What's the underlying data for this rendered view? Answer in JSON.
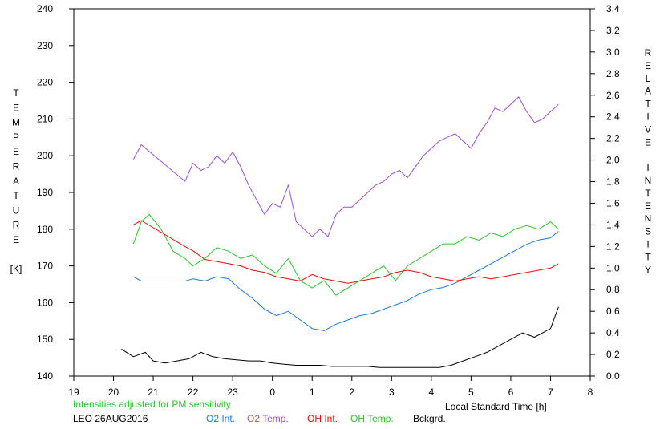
{
  "chart_data": {
    "type": "line",
    "xlabel": "Local Standard Time [h]",
    "ylabel_left_letters": [
      "T",
      "E",
      "M",
      "P",
      "E",
      "R",
      "A",
      "T",
      "U",
      "R",
      "E",
      "",
      "[K]"
    ],
    "ylabel_right_letters": [
      "R",
      "E",
      "L",
      "A",
      "T",
      "I",
      "V",
      "E",
      "",
      "I",
      "N",
      "T",
      "E",
      "N",
      "S",
      "I",
      "T",
      "Y"
    ],
    "x_ticks": [
      "19",
      "20",
      "21",
      "22",
      "23",
      "0",
      "1",
      "2",
      "3",
      "4",
      "5",
      "6",
      "7",
      "8"
    ],
    "xlim": [
      19,
      32
    ],
    "y_left_ticks": [
      140,
      150,
      160,
      170,
      180,
      190,
      200,
      210,
      220,
      230,
      240
    ],
    "ylim_left": [
      140,
      240
    ],
    "y_right_ticks": [
      "0.0",
      "0.2",
      "0.4",
      "0.6",
      "0.8",
      "1.0",
      "1.2",
      "1.4",
      "1.6",
      "1.8",
      "2.0",
      "2.2",
      "2.4",
      "2.6",
      "2.8",
      "3.0",
      "3.2",
      "3.4"
    ],
    "ylim_right": [
      0,
      3.4
    ],
    "note": "Intensities adjusted for PM sensitivity",
    "station": "LEO 26AUG2016",
    "legend": [
      {
        "name": "O2 Int.",
        "color": "#1f78d8"
      },
      {
        "name": "O2 Temp.",
        "color": "#9b4fd1"
      },
      {
        "name": "OH Int.",
        "color": "#e01010"
      },
      {
        "name": "OH Temp.",
        "color": "#2ec02e"
      },
      {
        "name": "Bckgrd.",
        "color": "#000000"
      }
    ],
    "series": [
      {
        "name": "O2 Temp.",
        "axis": "left",
        "color": "#9b4fd1",
        "x": [
          20.5,
          20.7,
          21.8,
          22.0,
          22.2,
          22.4,
          22.6,
          22.8,
          23.0,
          23.2,
          23.4,
          23.6,
          23.8,
          24.0,
          24.2,
          24.4,
          24.6,
          24.8,
          25.0,
          25.2,
          25.4,
          25.6,
          25.8,
          26.0,
          26.2,
          26.4,
          26.6,
          26.8,
          27.0,
          27.2,
          27.4,
          27.6,
          27.8,
          28.0,
          28.2,
          28.4,
          28.6,
          28.8,
          29.0,
          29.2,
          29.4,
          29.6,
          29.8,
          30.0,
          30.2,
          30.4,
          30.6,
          30.8,
          31.0,
          31.2
        ],
        "y": [
          199,
          203,
          193,
          198,
          196,
          197,
          200,
          198,
          201,
          197,
          192,
          188,
          184,
          187,
          186,
          192,
          182,
          180,
          178,
          180,
          178,
          184,
          186,
          186,
          188,
          190,
          192,
          193,
          195,
          196,
          194,
          197,
          200,
          202,
          204,
          205,
          206,
          204,
          202,
          206,
          209,
          213,
          212,
          214,
          216,
          212,
          209,
          210,
          212,
          214
        ]
      },
      {
        "name": "OH Temp.",
        "axis": "left",
        "color": "#2ec02e",
        "x": [
          20.5,
          20.7,
          20.9,
          21.2,
          21.5,
          21.8,
          22.0,
          22.3,
          22.6,
          22.9,
          23.2,
          23.5,
          23.8,
          24.1,
          24.4,
          24.7,
          25.0,
          25.3,
          25.6,
          25.9,
          26.2,
          26.5,
          26.8,
          27.1,
          27.4,
          27.7,
          28.0,
          28.3,
          28.6,
          28.9,
          29.2,
          29.5,
          29.8,
          30.1,
          30.4,
          30.7,
          31.0,
          31.2
        ],
        "y": [
          176,
          182,
          184,
          180,
          174,
          172,
          170,
          172,
          175,
          174,
          172,
          173,
          170,
          168,
          172,
          166,
          164,
          166,
          162,
          164,
          166,
          168,
          170,
          166,
          170,
          172,
          174,
          176,
          176,
          178,
          177,
          179,
          178,
          180,
          181,
          180,
          182,
          180
        ]
      },
      {
        "name": "O2 Int.",
        "axis": "right",
        "color": "#1f78d8",
        "x": [
          20.5,
          20.7,
          21.8,
          22.0,
          22.3,
          22.6,
          22.9,
          23.2,
          23.5,
          23.8,
          24.1,
          24.4,
          24.7,
          25.0,
          25.3,
          25.6,
          25.9,
          26.2,
          26.5,
          26.8,
          27.1,
          27.4,
          27.7,
          28.0,
          28.3,
          28.6,
          28.9,
          29.2,
          29.5,
          29.8,
          30.1,
          30.4,
          30.7,
          31.0,
          31.2
        ],
        "y": [
          0.92,
          0.88,
          0.88,
          0.9,
          0.88,
          0.92,
          0.9,
          0.8,
          0.72,
          0.62,
          0.56,
          0.6,
          0.52,
          0.44,
          0.42,
          0.48,
          0.52,
          0.56,
          0.58,
          0.62,
          0.66,
          0.7,
          0.76,
          0.8,
          0.82,
          0.86,
          0.92,
          0.98,
          1.04,
          1.1,
          1.16,
          1.22,
          1.26,
          1.28,
          1.34
        ]
      },
      {
        "name": "OH Int.",
        "axis": "right",
        "color": "#e01010",
        "x": [
          20.5,
          20.7,
          21.8,
          22.0,
          22.3,
          22.6,
          22.9,
          23.2,
          23.5,
          23.8,
          24.1,
          24.4,
          24.7,
          25.0,
          25.3,
          25.6,
          25.9,
          26.2,
          26.5,
          26.8,
          27.1,
          27.4,
          27.7,
          28.0,
          28.3,
          28.6,
          28.9,
          29.2,
          29.5,
          29.8,
          30.1,
          30.4,
          30.7,
          31.0,
          31.2
        ],
        "y": [
          1.4,
          1.44,
          1.2,
          1.16,
          1.08,
          1.06,
          1.04,
          1.02,
          0.98,
          0.96,
          0.92,
          0.9,
          0.88,
          0.94,
          0.9,
          0.88,
          0.86,
          0.88,
          0.9,
          0.92,
          0.96,
          0.98,
          0.96,
          0.92,
          0.9,
          0.88,
          0.9,
          0.92,
          0.9,
          0.92,
          0.94,
          0.96,
          0.98,
          1.0,
          1.04
        ]
      },
      {
        "name": "Bckgrd.",
        "axis": "right",
        "color": "#000000",
        "x": [
          20.2,
          20.5,
          20.8,
          21.0,
          21.3,
          21.6,
          21.9,
          22.2,
          22.5,
          22.8,
          23.1,
          23.4,
          23.7,
          24.0,
          24.3,
          24.6,
          24.9,
          25.2,
          25.5,
          25.8,
          26.1,
          26.4,
          26.7,
          27.0,
          27.3,
          27.6,
          27.9,
          28.2,
          28.5,
          28.8,
          29.1,
          29.4,
          29.7,
          30.0,
          30.3,
          30.6,
          30.8,
          31.0,
          31.2
        ],
        "y": [
          0.25,
          0.18,
          0.22,
          0.14,
          0.12,
          0.14,
          0.16,
          0.22,
          0.18,
          0.16,
          0.15,
          0.14,
          0.14,
          0.12,
          0.11,
          0.1,
          0.1,
          0.1,
          0.09,
          0.09,
          0.09,
          0.09,
          0.08,
          0.08,
          0.08,
          0.08,
          0.08,
          0.08,
          0.1,
          0.14,
          0.18,
          0.22,
          0.28,
          0.34,
          0.4,
          0.36,
          0.4,
          0.44,
          0.64
        ]
      }
    ]
  }
}
